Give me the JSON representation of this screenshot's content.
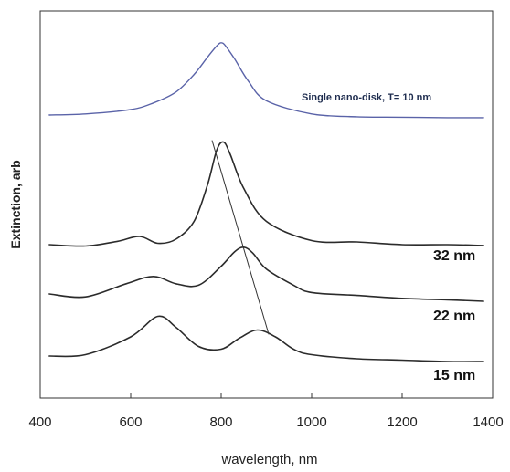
{
  "chart_data": {
    "type": "line",
    "xlabel": "wavelength, nm",
    "ylabel": "Extinction, arb",
    "xlim": [
      400,
      1400
    ],
    "x_ticks": [
      "400",
      "600",
      "800",
      "1000",
      "1200",
      "1400"
    ],
    "grid": false,
    "annotations": {
      "top_curve": "Single nano-disk, T= 10 nm",
      "curve_32": "32 nm",
      "curve_22": "22 nm",
      "curve_15": "15 nm"
    },
    "colors": {
      "top_curve": "#5a63a8",
      "curves": "#2b2b2b",
      "axis": "#333333"
    },
    "series": [
      {
        "name": "Single nano-disk, T= 10 nm",
        "x": [
          420,
          500,
          600,
          650,
          700,
          740,
          770,
          790,
          800,
          810,
          830,
          860,
          900,
          1000,
          1100,
          1200,
          1300,
          1380
        ],
        "y": [
          1.0,
          1.05,
          1.25,
          1.55,
          2.05,
          2.85,
          3.65,
          4.15,
          4.3,
          4.15,
          3.55,
          2.55,
          1.65,
          1.05,
          0.92,
          0.9,
          0.88,
          0.88
        ]
      },
      {
        "name": "32 nm",
        "x": [
          420,
          500,
          570,
          620,
          660,
          700,
          740,
          770,
          790,
          805,
          820,
          850,
          900,
          1000,
          1100,
          1200,
          1300,
          1380
        ],
        "y": [
          0.0,
          -0.05,
          0.12,
          0.3,
          0.05,
          0.2,
          0.85,
          2.2,
          3.45,
          3.75,
          3.3,
          2.05,
          0.85,
          0.15,
          0.1,
          0.0,
          0.0,
          -0.03
        ]
      },
      {
        "name": "22 nm",
        "x": [
          420,
          500,
          590,
          650,
          700,
          750,
          800,
          830,
          850,
          870,
          900,
          960,
          1000,
          1100,
          1200,
          1300,
          1380
        ],
        "y": [
          0.0,
          -0.1,
          0.35,
          0.6,
          0.35,
          0.3,
          0.95,
          1.45,
          1.6,
          1.4,
          0.85,
          0.3,
          0.05,
          -0.05,
          -0.15,
          -0.2,
          -0.25
        ]
      },
      {
        "name": "15 nm",
        "x": [
          420,
          500,
          600,
          660,
          700,
          750,
          800,
          840,
          880,
          920,
          960,
          1000,
          1100,
          1200,
          1300,
          1380
        ],
        "y": [
          0.0,
          0.05,
          0.7,
          1.45,
          1.05,
          0.35,
          0.25,
          0.65,
          0.95,
          0.7,
          0.25,
          0.05,
          -0.1,
          -0.15,
          -0.2,
          -0.2
        ]
      },
      {
        "name": "",
        "x": [
          780,
          905
        ],
        "y": [
          12.2,
          1.6
        ]
      }
    ]
  }
}
